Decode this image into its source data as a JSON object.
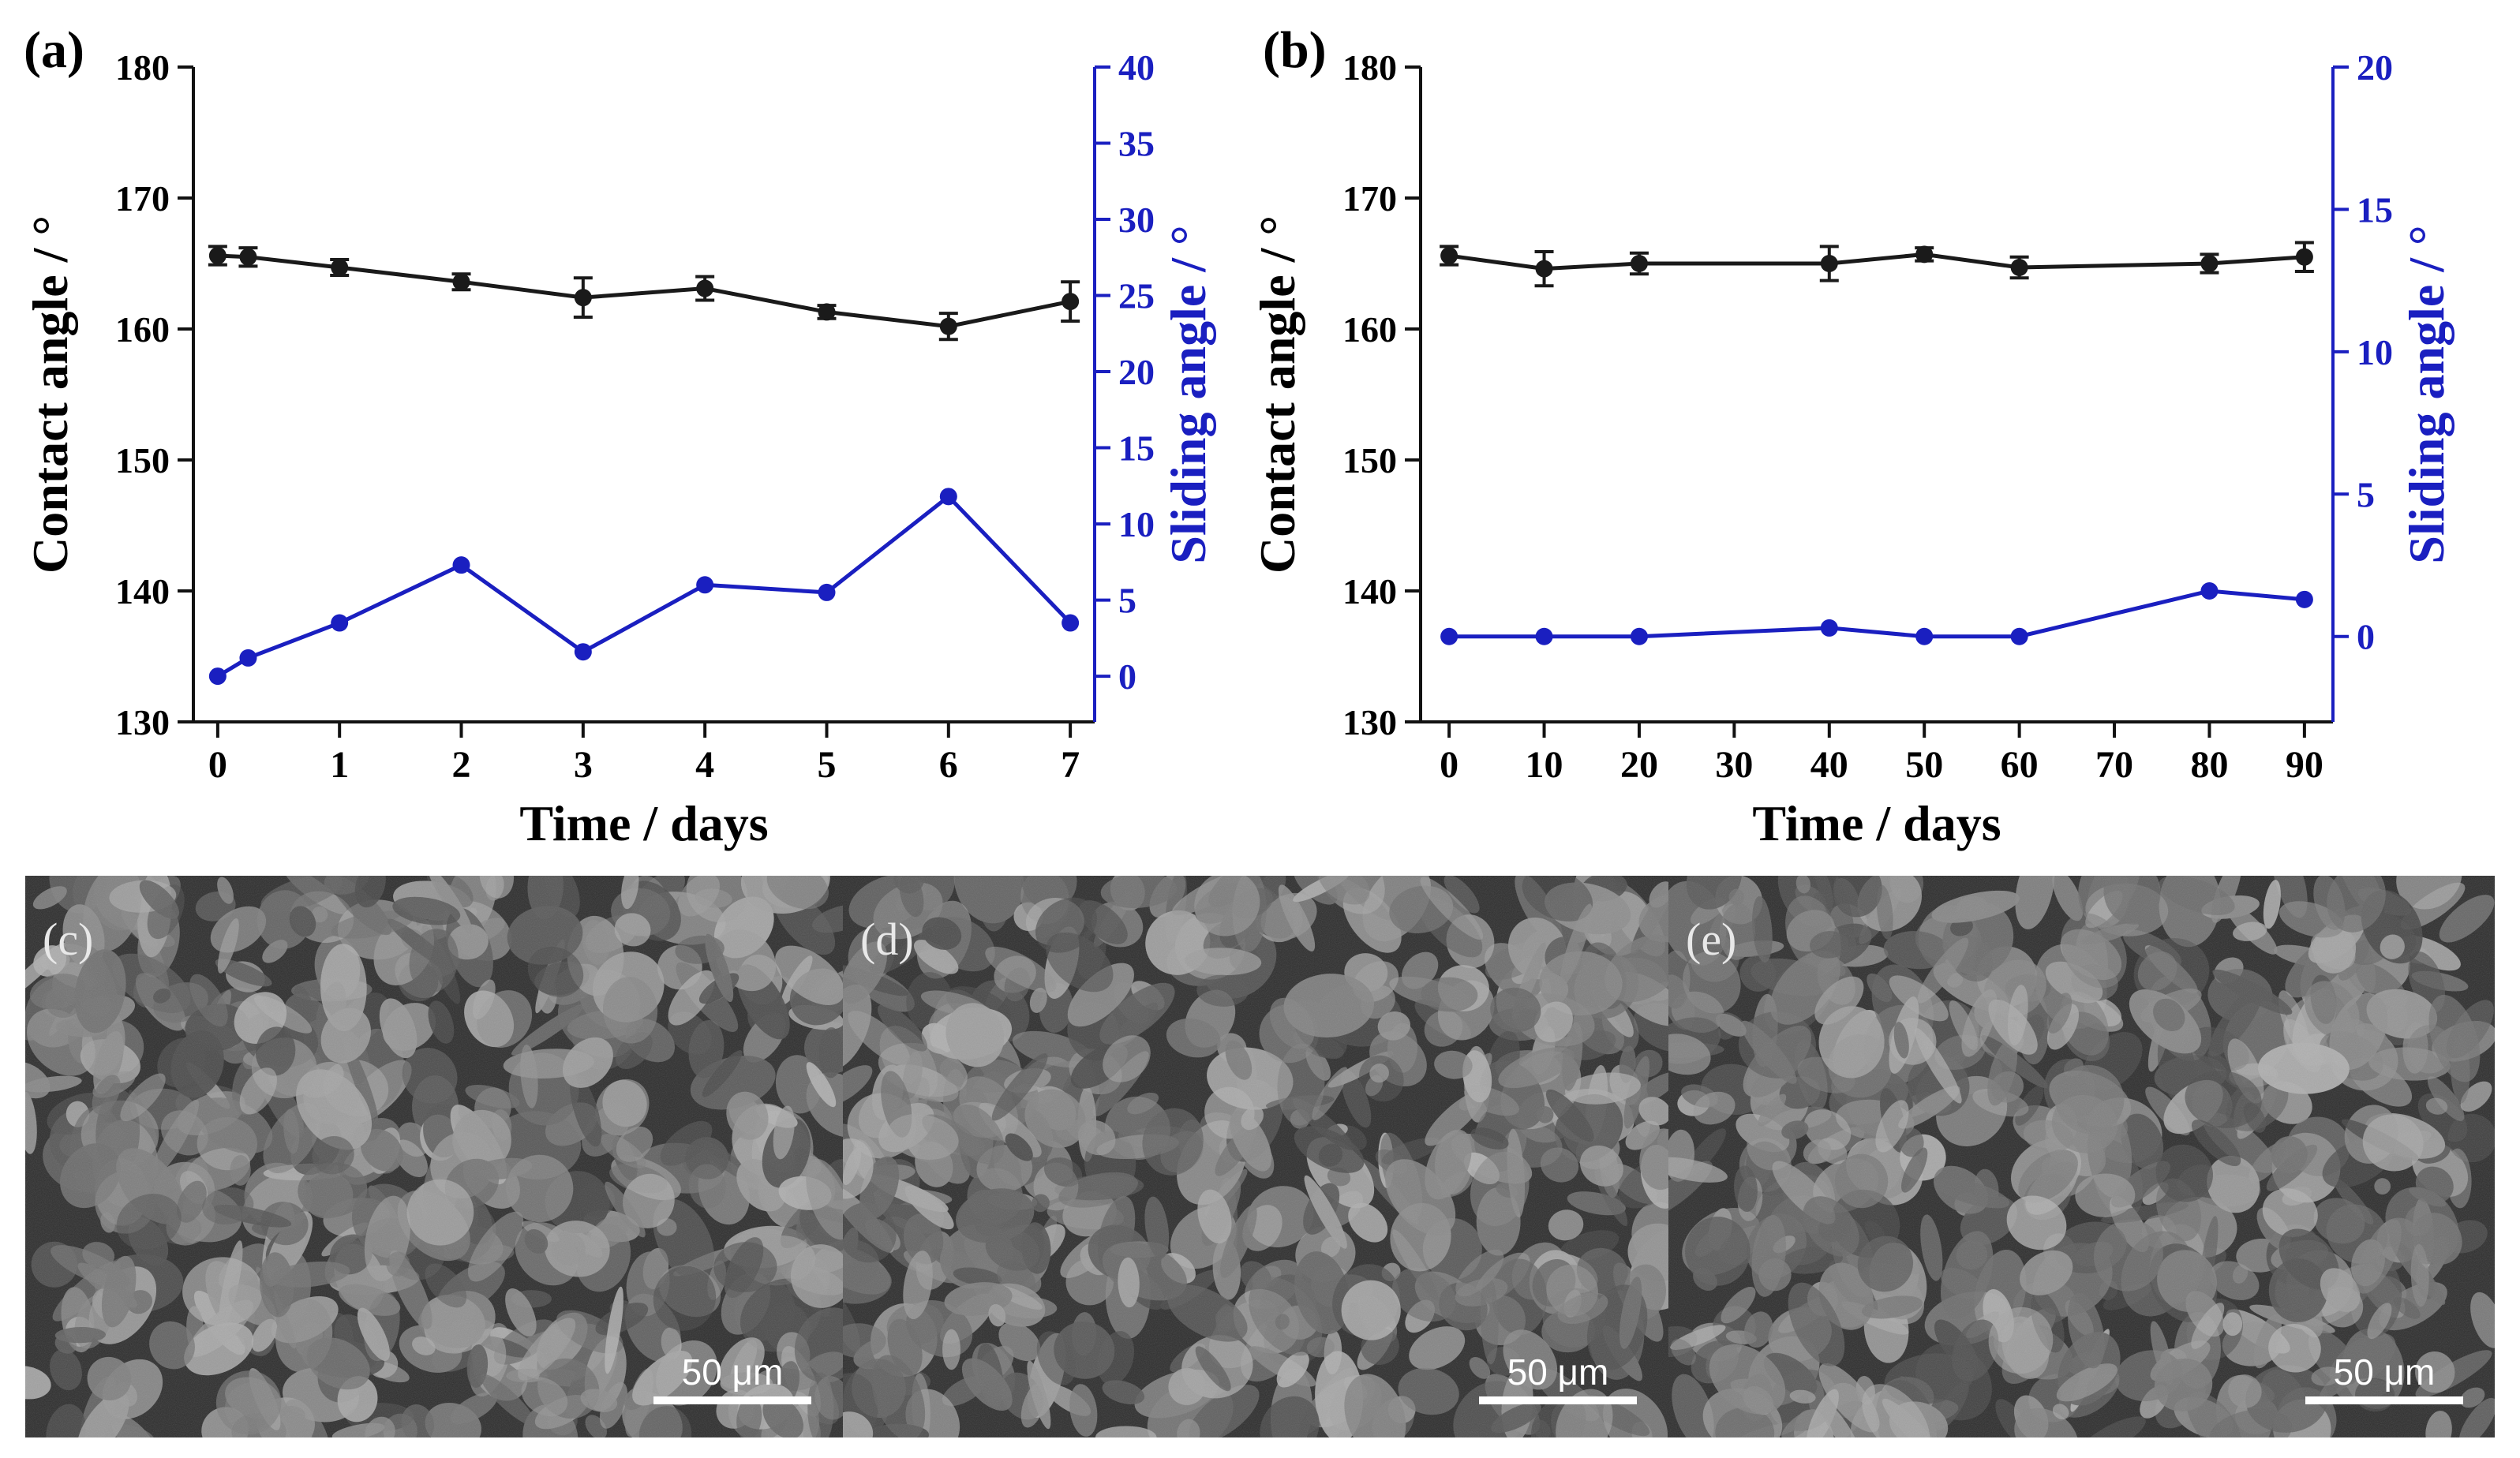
{
  "chart_data": [
    {
      "panel": "(a)",
      "type": "line",
      "xlabel": "Time / days",
      "ylabel_left": "Contact angle / °",
      "ylabel_right": "Sliding angle / °",
      "xlim": [
        -0.2,
        7.2
      ],
      "ylim_left": [
        130,
        180
      ],
      "ylim_right": [
        -3,
        40
      ],
      "x_ticks": [
        0,
        1,
        2,
        3,
        4,
        5,
        6,
        7
      ],
      "y_ticks_left": [
        130,
        140,
        150,
        160,
        170,
        180
      ],
      "y_ticks_right": [
        0,
        5,
        10,
        15,
        20,
        25,
        30,
        35,
        40
      ],
      "series": [
        {
          "name": "Contact angle",
          "axis": "left",
          "color": "#1a1a1a",
          "marker": "square",
          "x": [
            0,
            0.25,
            1,
            2,
            3,
            4,
            5,
            6,
            7
          ],
          "y": [
            165.6,
            165.5,
            164.7,
            163.6,
            162.4,
            163.1,
            161.3,
            160.2,
            162.1
          ],
          "err": [
            0.7,
            0.7,
            0.6,
            0.6,
            1.5,
            0.9,
            0.5,
            1.0,
            1.5
          ]
        },
        {
          "name": "Sliding angle",
          "axis": "right",
          "color": "#1a1fc0",
          "marker": "circle",
          "x": [
            0,
            0.25,
            1,
            2,
            3,
            4,
            5,
            6,
            7
          ],
          "y": [
            0,
            1.2,
            3.5,
            7.3,
            1.6,
            6.0,
            5.5,
            11.8,
            3.5
          ]
        }
      ]
    },
    {
      "panel": "(b)",
      "type": "line",
      "xlabel": "Time / days",
      "ylabel_left": "Contact angle / °",
      "ylabel_right": "Sliding angle / °",
      "xlim": [
        -3,
        93
      ],
      "ylim_left": [
        130,
        180
      ],
      "ylim_right": [
        -3,
        20
      ],
      "x_ticks": [
        0,
        10,
        20,
        30,
        40,
        50,
        60,
        70,
        80,
        90
      ],
      "y_ticks_left": [
        130,
        140,
        150,
        160,
        170,
        180
      ],
      "y_ticks_right": [
        0,
        5,
        10,
        15,
        20
      ],
      "series": [
        {
          "name": "Contact angle",
          "axis": "left",
          "color": "#1a1a1a",
          "marker": "square",
          "x": [
            0,
            10,
            20,
            40,
            50,
            60,
            80,
            90
          ],
          "y": [
            165.6,
            164.6,
            165.0,
            165.0,
            165.7,
            164.7,
            165.0,
            165.5
          ],
          "err": [
            0.7,
            1.3,
            0.8,
            1.3,
            0.5,
            0.8,
            0.7,
            1.1
          ]
        },
        {
          "name": "Sliding angle",
          "axis": "right",
          "color": "#1a1fc0",
          "marker": "circle",
          "x": [
            0,
            10,
            20,
            40,
            50,
            60,
            80,
            90
          ],
          "y": [
            0,
            0,
            0,
            0.3,
            0,
            0,
            1.6,
            1.3
          ]
        }
      ]
    }
  ],
  "images": [
    {
      "panel": "(c)",
      "scale_bar": "50 μm",
      "seed": 11
    },
    {
      "panel": "(d)",
      "scale_bar": "50 μm",
      "seed": 23
    },
    {
      "panel": "(e)",
      "scale_bar": "50 μm",
      "seed": 37
    }
  ]
}
